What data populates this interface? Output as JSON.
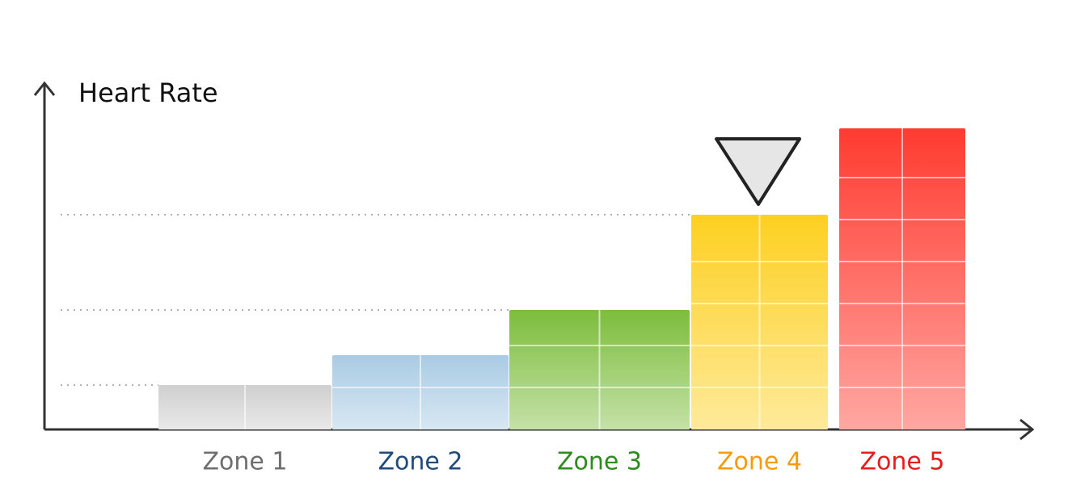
{
  "chart_data": {
    "type": "bar",
    "y_label": "Heart Rate",
    "categories": [
      "Zone 1",
      "Zone 2",
      "Zone 3",
      "Zone 4",
      "Zone 5"
    ],
    "values": [
      55,
      92,
      148,
      266,
      373
    ],
    "colors": [
      "#cfcfcf",
      "#a9cbe3",
      "#7dbd3c",
      "#fdd020",
      "#ff3b30"
    ],
    "label_colors": [
      "#6e6e6e",
      "#1f4a7a",
      "#2e8b1e",
      "#f59c0a",
      "#e81c1c"
    ],
    "ylim": [
      0,
      432
    ]
  }
}
